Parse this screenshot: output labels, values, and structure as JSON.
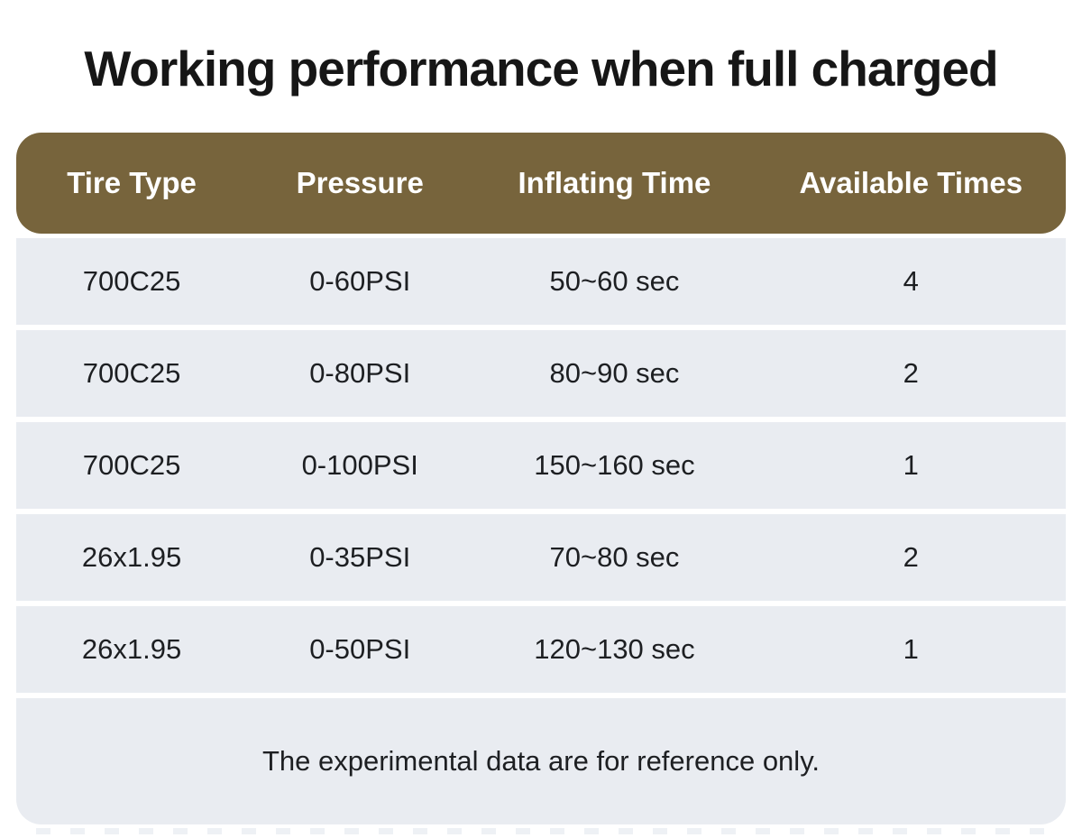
{
  "title": "Working performance when full charged",
  "table": {
    "headers": [
      "Tire Type",
      "Pressure",
      "Inflating Time",
      "Available Times"
    ],
    "rows": [
      [
        "700C25",
        "0-60PSI",
        "50~60 sec",
        "4"
      ],
      [
        "700C25",
        "0-80PSI",
        "80~90 sec",
        "2"
      ],
      [
        "700C25",
        "0-100PSI",
        "150~160 sec",
        "1"
      ],
      [
        "26x1.95",
        "0-35PSI",
        "70~80 sec",
        "2"
      ],
      [
        "26x1.95",
        "0-50PSI",
        "120~130 sec",
        "1"
      ]
    ],
    "note": "The experimental data are for reference only."
  },
  "colors": {
    "header_background": "#77643C",
    "header_text": "#FFFFFF",
    "row_background": "#E9ECF1",
    "body_text": "#1D1F22",
    "page_background": "#FFFFFF"
  },
  "chart_data": {
    "type": "table",
    "title": "Working performance when full charged",
    "columns": [
      "Tire Type",
      "Pressure",
      "Inflating Time",
      "Available Times"
    ],
    "rows": [
      {
        "tire_type": "700C25",
        "pressure": "0-60PSI",
        "inflating_time": "50~60 sec",
        "available_times": 4
      },
      {
        "tire_type": "700C25",
        "pressure": "0-80PSI",
        "inflating_time": "80~90 sec",
        "available_times": 2
      },
      {
        "tire_type": "700C25",
        "pressure": "0-100PSI",
        "inflating_time": "150~160 sec",
        "available_times": 1
      },
      {
        "tire_type": "26x1.95",
        "pressure": "0-35PSI",
        "inflating_time": "70~80 sec",
        "available_times": 2
      },
      {
        "tire_type": "26x1.95",
        "pressure": "0-50PSI",
        "inflating_time": "120~130 sec",
        "available_times": 1
      }
    ],
    "footnote": "The experimental data are for reference only.",
    "layout_hints": {
      "header_style": "rounded brown bar",
      "row_style": "light gray bands separated by thin white gaps",
      "footnote_position": "bottom band with rounded bottom corners"
    }
  }
}
